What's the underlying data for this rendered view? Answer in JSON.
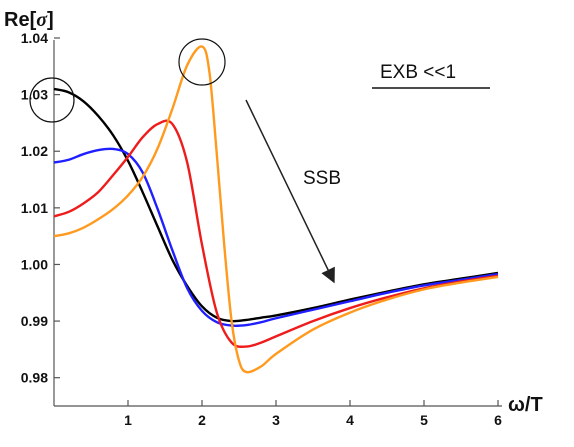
{
  "chart_data": {
    "type": "line",
    "ylabel_prefix": "Re[",
    "ylabel_symbol": "σ",
    "ylabel_suffix": "]",
    "xlabel": "ω/T",
    "xlim": [
      0,
      6
    ],
    "ylim": [
      0.975,
      1.04
    ],
    "xticks": [
      "1",
      "2",
      "3",
      "4",
      "5",
      "6"
    ],
    "yticks": [
      "0.98",
      "0.99",
      "1.00",
      "1.01",
      "1.02",
      "1.03",
      "1.04"
    ],
    "grid": false,
    "legend": "none",
    "annotations": {
      "exb": "EXB <<1",
      "ssb": "SSB"
    },
    "series": [
      {
        "color": "#000000",
        "x": [
          0,
          0.2,
          0.4,
          0.6,
          0.8,
          1.0,
          1.2,
          1.4,
          1.6,
          1.8,
          2.0,
          2.2,
          2.4,
          2.6,
          2.8,
          3.0,
          3.5,
          4.0,
          4.5,
          5.0,
          5.5,
          6.0
        ],
        "y": [
          1.031,
          1.0304,
          1.0288,
          1.0262,
          1.0228,
          1.0183,
          1.0127,
          1.0067,
          1.0008,
          0.9962,
          0.9926,
          0.9906,
          0.99,
          0.9902,
          0.9906,
          0.991,
          0.9923,
          0.9938,
          0.9952,
          0.9965,
          0.9975,
          0.9985
        ]
      },
      {
        "color": "#1f1fff",
        "x": [
          0,
          0.2,
          0.4,
          0.6,
          0.8,
          1.0,
          1.2,
          1.4,
          1.6,
          1.8,
          2.0,
          2.2,
          2.4,
          2.6,
          2.8,
          3.0,
          3.5,
          4.0,
          4.5,
          5.0,
          5.5,
          6.0
        ],
        "y": [
          1.018,
          1.0185,
          1.0195,
          1.0202,
          1.0204,
          1.0195,
          1.0162,
          1.0098,
          1.0025,
          0.9958,
          0.9918,
          0.9898,
          0.9892,
          0.9893,
          0.9898,
          0.9905,
          0.992,
          0.9935,
          0.995,
          0.9963,
          0.9973,
          0.9983
        ]
      },
      {
        "color": "#ee1c1c",
        "x": [
          0,
          0.2,
          0.4,
          0.6,
          0.8,
          1.0,
          1.2,
          1.4,
          1.6,
          1.8,
          2.0,
          2.2,
          2.4,
          2.6,
          2.8,
          3.0,
          3.5,
          4.0,
          4.5,
          5.0,
          5.5,
          6.0
        ],
        "y": [
          1.0085,
          1.0093,
          1.0108,
          1.0128,
          1.0158,
          1.019,
          1.0225,
          1.0248,
          1.0248,
          1.018,
          1.0035,
          0.9915,
          0.9862,
          0.9855,
          0.9862,
          0.9873,
          0.99,
          0.9923,
          0.9942,
          0.9958,
          0.997,
          0.998
        ]
      },
      {
        "color": "#ff9a1f",
        "x": [
          0,
          0.2,
          0.4,
          0.6,
          0.8,
          1.0,
          1.2,
          1.4,
          1.6,
          1.8,
          2.0,
          2.1,
          2.2,
          2.3,
          2.4,
          2.5,
          2.6,
          2.8,
          3.0,
          3.5,
          4.0,
          4.5,
          5.0,
          5.5,
          6.0
        ],
        "y": [
          1.005,
          1.0055,
          1.0065,
          1.008,
          1.0098,
          1.0122,
          1.0155,
          1.0205,
          1.0275,
          1.0352,
          1.0385,
          1.034,
          1.0195,
          1.0035,
          0.99,
          0.983,
          0.981,
          0.982,
          0.9842,
          0.9885,
          0.9915,
          0.9938,
          0.9956,
          0.9968,
          0.9978
        ]
      }
    ]
  }
}
